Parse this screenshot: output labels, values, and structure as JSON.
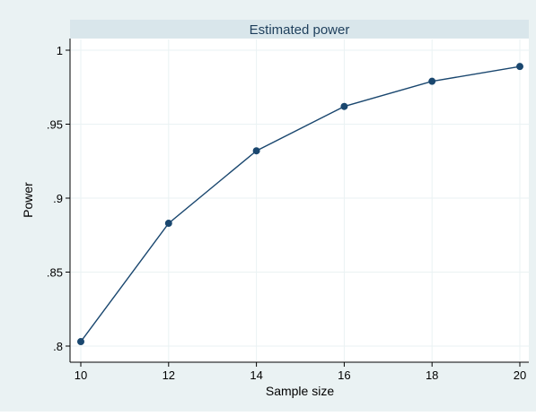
{
  "chart_data": {
    "type": "line",
    "title": "Estimated power",
    "xlabel": "Sample size",
    "ylabel": "Power",
    "x": [
      10,
      12,
      14,
      16,
      18,
      20
    ],
    "y": [
      0.803,
      0.883,
      0.932,
      0.962,
      0.979,
      0.989
    ],
    "xticks": [
      "10",
      "12",
      "14",
      "16",
      "18",
      "20"
    ],
    "yticks": [
      ".8",
      ".85",
      ".9",
      ".95",
      "1"
    ],
    "xlim": [
      10,
      20
    ],
    "ylim": [
      0.8,
      1.0
    ],
    "grid": true,
    "colors": {
      "background": "#eaf2f3",
      "plot_area": "#ffffff",
      "line": "#1a476f",
      "marker": "#1a476f",
      "title_band": "#d9e6eb",
      "grid": "#eaf2f3"
    }
  }
}
